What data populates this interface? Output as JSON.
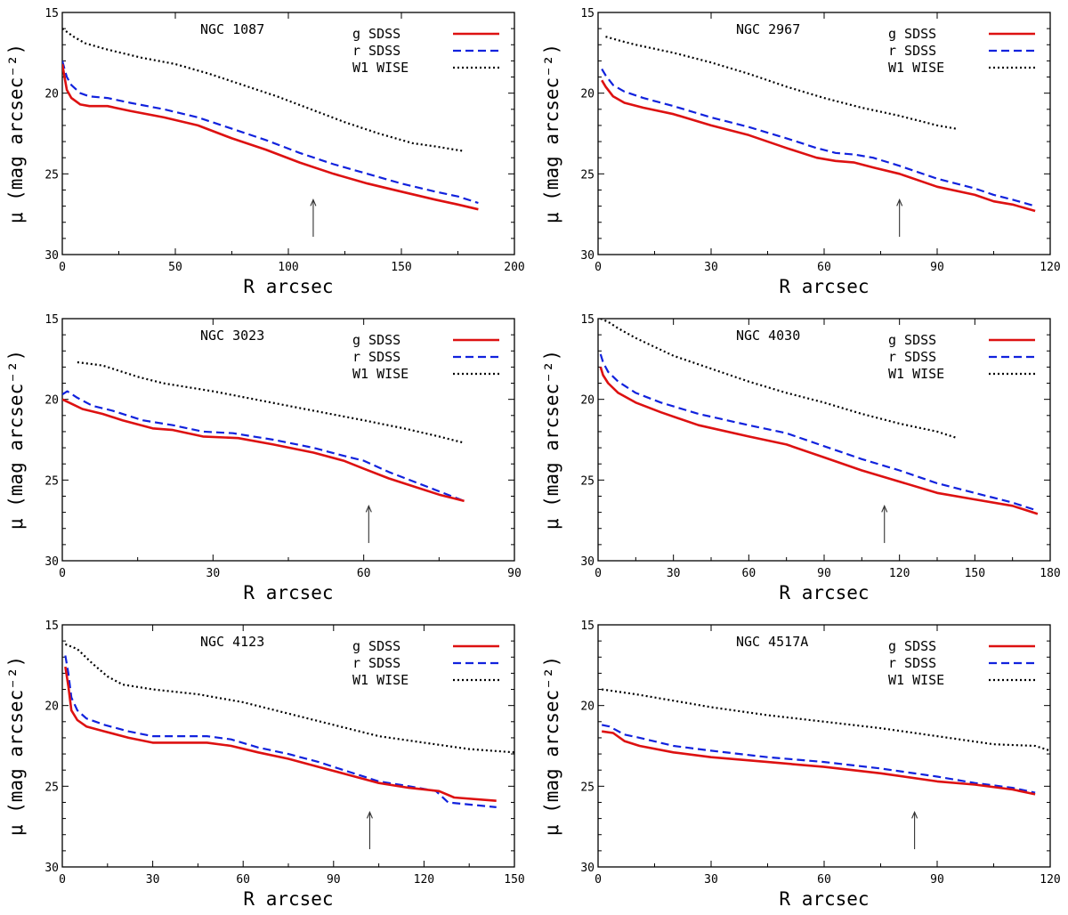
{
  "figure": {
    "xlabel": "R arcsec",
    "ylabel": "μ (mag arcsec⁻²)"
  },
  "colors": {
    "g": "#dd1111",
    "r": "#1122dd",
    "w1": "#000000",
    "arrow": "#333333"
  },
  "chart_data": [
    {
      "type": "line",
      "title": "NGC 1087",
      "xlabel": "R arcsec",
      "ylabel": "μ (mag arcsec⁻²)",
      "xlim": [
        0,
        200
      ],
      "ylim": [
        30,
        15
      ],
      "xticks": [
        "0",
        "50",
        "100",
        "150",
        "200"
      ],
      "yticks": [
        "15",
        "20",
        "25",
        "30"
      ],
      "legend": [
        "g   SDSS",
        "r   SDSS",
        "W1  WISE"
      ],
      "arrow_x": 111,
      "series": [
        {
          "name": "g SDSS",
          "key": "g",
          "x": [
            0,
            1,
            2,
            4,
            8,
            12,
            20,
            30,
            45,
            60,
            75,
            90,
            105,
            120,
            135,
            150,
            165,
            175,
            184
          ],
          "y": [
            18.2,
            19.0,
            19.8,
            20.3,
            20.7,
            20.8,
            20.8,
            21.1,
            21.5,
            22.0,
            22.8,
            23.5,
            24.3,
            25.0,
            25.6,
            26.1,
            26.6,
            26.9,
            27.2
          ]
        },
        {
          "name": "r SDSS",
          "key": "r",
          "x": [
            0,
            1,
            2,
            4,
            8,
            12,
            20,
            30,
            45,
            60,
            75,
            90,
            105,
            120,
            135,
            150,
            165,
            175,
            184
          ],
          "y": [
            18.0,
            18.5,
            19.0,
            19.5,
            20.0,
            20.2,
            20.3,
            20.6,
            21.0,
            21.5,
            22.2,
            22.9,
            23.7,
            24.4,
            25.0,
            25.6,
            26.1,
            26.4,
            26.8
          ]
        },
        {
          "name": "W1 WISE",
          "key": "w1",
          "x": [
            0,
            5,
            10,
            20,
            35,
            50,
            65,
            80,
            95,
            110,
            125,
            140,
            155,
            165,
            178
          ],
          "y": [
            16.0,
            16.5,
            16.9,
            17.3,
            17.8,
            18.2,
            18.8,
            19.5,
            20.2,
            21.0,
            21.8,
            22.5,
            23.1,
            23.3,
            23.6
          ]
        }
      ]
    },
    {
      "type": "line",
      "title": "NGC 2967",
      "xlabel": "R arcsec",
      "ylabel": "μ (mag arcsec⁻²)",
      "xlim": [
        0,
        120
      ],
      "ylim": [
        30,
        15
      ],
      "xticks": [
        "0",
        "30",
        "60",
        "90",
        "120"
      ],
      "yticks": [
        "15",
        "20",
        "25",
        "30"
      ],
      "legend": [
        "g   SDSS",
        "r   SDSS",
        "W1  WISE"
      ],
      "arrow_x": 80,
      "series": [
        {
          "name": "g SDSS",
          "key": "g",
          "x": [
            1,
            2,
            4,
            7,
            12,
            20,
            30,
            40,
            50,
            58,
            63,
            68,
            73,
            80,
            90,
            100,
            105,
            110,
            116
          ],
          "y": [
            19.2,
            19.6,
            20.2,
            20.6,
            20.9,
            21.3,
            22.0,
            22.6,
            23.4,
            24.0,
            24.2,
            24.3,
            24.6,
            25.0,
            25.8,
            26.3,
            26.7,
            26.9,
            27.3
          ]
        },
        {
          "name": "r SDSS",
          "key": "r",
          "x": [
            1,
            2,
            4,
            7,
            12,
            20,
            30,
            40,
            50,
            58,
            63,
            68,
            73,
            80,
            90,
            100,
            105,
            110,
            116
          ],
          "y": [
            18.5,
            18.9,
            19.5,
            19.9,
            20.3,
            20.8,
            21.5,
            22.1,
            22.8,
            23.4,
            23.7,
            23.8,
            24.0,
            24.5,
            25.3,
            25.9,
            26.3,
            26.6,
            27.0
          ]
        },
        {
          "name": "W1 WISE",
          "key": "w1",
          "x": [
            2,
            5,
            10,
            20,
            30,
            40,
            50,
            60,
            70,
            80,
            90,
            95
          ],
          "y": [
            16.5,
            16.7,
            17.0,
            17.5,
            18.1,
            18.8,
            19.6,
            20.3,
            20.9,
            21.4,
            22.0,
            22.2
          ]
        }
      ]
    },
    {
      "type": "line",
      "title": "NGC 3023",
      "xlabel": "R arcsec",
      "ylabel": "μ (mag arcsec⁻²)",
      "xlim": [
        0,
        90
      ],
      "ylim": [
        30,
        15
      ],
      "xticks": [
        "0",
        "30",
        "60",
        "90"
      ],
      "yticks": [
        "15",
        "20",
        "25",
        "30"
      ],
      "legend": [
        "g   SDSS",
        "r   SDSS",
        "W1  WISE"
      ],
      "arrow_x": 61,
      "series": [
        {
          "name": "g SDSS",
          "key": "g",
          "x": [
            0,
            2,
            4,
            8,
            12,
            18,
            22,
            28,
            35,
            42,
            50,
            56,
            60,
            65,
            70,
            75,
            80
          ],
          "y": [
            20.0,
            20.3,
            20.6,
            20.9,
            21.3,
            21.8,
            21.9,
            22.3,
            22.4,
            22.8,
            23.3,
            23.8,
            24.3,
            24.9,
            25.4,
            25.9,
            26.3
          ]
        },
        {
          "name": "r SDSS",
          "key": "r",
          "x": [
            0,
            1,
            3,
            6,
            10,
            16,
            22,
            28,
            34,
            36,
            42,
            50,
            56,
            60,
            65,
            70,
            75,
            80
          ],
          "y": [
            19.7,
            19.5,
            19.9,
            20.4,
            20.7,
            21.3,
            21.6,
            22.0,
            22.1,
            22.2,
            22.5,
            23.0,
            23.5,
            23.8,
            24.5,
            25.1,
            25.7,
            26.3
          ]
        },
        {
          "name": "W1 WISE",
          "key": "w1",
          "x": [
            3,
            8,
            15,
            20,
            30,
            40,
            50,
            60,
            68,
            75,
            80
          ],
          "y": [
            17.7,
            17.9,
            18.6,
            19.0,
            19.5,
            20.1,
            20.7,
            21.3,
            21.8,
            22.3,
            22.7
          ]
        }
      ]
    },
    {
      "type": "line",
      "title": "NGC 4030",
      "xlabel": "R arcsec",
      "ylabel": "μ (mag arcsec⁻²)",
      "xlim": [
        0,
        180
      ],
      "ylim": [
        30,
        15
      ],
      "xticks": [
        "0",
        "30",
        "60",
        "90",
        "120",
        "150",
        "180"
      ],
      "yticks": [
        "15",
        "20",
        "25",
        "30"
      ],
      "legend": [
        "g   SDSS",
        "r   SDSS",
        "W1  WISE"
      ],
      "arrow_x": 114,
      "series": [
        {
          "name": "g SDSS",
          "key": "g",
          "x": [
            1,
            2,
            4,
            8,
            15,
            25,
            40,
            60,
            75,
            90,
            105,
            120,
            135,
            150,
            165,
            175
          ],
          "y": [
            18.0,
            18.5,
            19.0,
            19.6,
            20.2,
            20.8,
            21.6,
            22.3,
            22.8,
            23.6,
            24.4,
            25.1,
            25.8,
            26.2,
            26.6,
            27.1
          ]
        },
        {
          "name": "r SDSS",
          "key": "r",
          "x": [
            1,
            2,
            4,
            8,
            15,
            25,
            40,
            60,
            75,
            90,
            105,
            120,
            135,
            150,
            165,
            175
          ],
          "y": [
            17.2,
            17.7,
            18.3,
            18.9,
            19.6,
            20.2,
            20.9,
            21.6,
            22.1,
            22.9,
            23.7,
            24.4,
            25.2,
            25.8,
            26.4,
            26.9
          ]
        },
        {
          "name": "W1 WISE",
          "key": "w1",
          "x": [
            1,
            4,
            8,
            15,
            30,
            45,
            60,
            75,
            90,
            105,
            120,
            135,
            143
          ],
          "y": [
            15.0,
            15.2,
            15.6,
            16.2,
            17.3,
            18.1,
            18.9,
            19.6,
            20.2,
            20.9,
            21.5,
            22.0,
            22.4
          ]
        }
      ]
    },
    {
      "type": "line",
      "title": "NGC 4123",
      "xlabel": "R arcsec",
      "ylabel": "μ (mag arcsec⁻²)",
      "xlim": [
        0,
        150
      ],
      "ylim": [
        30,
        15
      ],
      "xticks": [
        "0",
        "30",
        "60",
        "90",
        "120",
        "150"
      ],
      "yticks": [
        "15",
        "20",
        "25",
        "30"
      ],
      "legend": [
        "g   SDSS",
        "r   SDSS",
        "W1  WISE"
      ],
      "arrow_x": 102,
      "series": [
        {
          "name": "g SDSS",
          "key": "g",
          "x": [
            1,
            2,
            3,
            5,
            8,
            14,
            22,
            30,
            40,
            48,
            56,
            65,
            75,
            85,
            95,
            105,
            115,
            125,
            130,
            144
          ],
          "y": [
            17.6,
            18.8,
            20.3,
            20.9,
            21.3,
            21.6,
            22.0,
            22.3,
            22.3,
            22.3,
            22.5,
            22.9,
            23.3,
            23.8,
            24.3,
            24.8,
            25.1,
            25.3,
            25.7,
            25.9
          ]
        },
        {
          "name": "r SDSS",
          "key": "r",
          "x": [
            1,
            2,
            3,
            5,
            8,
            14,
            22,
            30,
            40,
            48,
            56,
            65,
            75,
            85,
            95,
            105,
            115,
            124,
            128,
            144
          ],
          "y": [
            16.9,
            18.0,
            19.5,
            20.3,
            20.8,
            21.2,
            21.6,
            21.9,
            21.9,
            21.9,
            22.1,
            22.6,
            23.0,
            23.5,
            24.1,
            24.7,
            25.0,
            25.3,
            26.0,
            26.3
          ]
        },
        {
          "name": "W1 WISE",
          "key": "w1",
          "x": [
            1,
            5,
            10,
            15,
            20,
            30,
            45,
            60,
            75,
            90,
            105,
            120,
            135,
            150
          ],
          "y": [
            16.2,
            16.5,
            17.4,
            18.2,
            18.7,
            19.0,
            19.3,
            19.8,
            20.5,
            21.2,
            21.9,
            22.3,
            22.7,
            22.9
          ]
        }
      ]
    },
    {
      "type": "line",
      "title": "NGC 4517A",
      "xlabel": "R arcsec",
      "ylabel": "μ (mag arcsec⁻²)",
      "xlim": [
        0,
        120
      ],
      "ylim": [
        30,
        15
      ],
      "xticks": [
        "0",
        "30",
        "60",
        "90",
        "120"
      ],
      "yticks": [
        "15",
        "20",
        "25",
        "30"
      ],
      "legend": [
        "g   SDSS",
        "r   SDSS",
        "W1  WISE"
      ],
      "arrow_x": 84,
      "series": [
        {
          "name": "g SDSS",
          "key": "g",
          "x": [
            1,
            4,
            7,
            11,
            20,
            30,
            45,
            60,
            75,
            90,
            100,
            110,
            116
          ],
          "y": [
            21.6,
            21.7,
            22.2,
            22.5,
            22.9,
            23.2,
            23.5,
            23.8,
            24.2,
            24.7,
            24.9,
            25.2,
            25.5
          ]
        },
        {
          "name": "r SDSS",
          "key": "r",
          "x": [
            1,
            3,
            7,
            11,
            20,
            30,
            45,
            60,
            75,
            90,
            100,
            110,
            116
          ],
          "y": [
            21.2,
            21.3,
            21.8,
            22.0,
            22.5,
            22.8,
            23.2,
            23.5,
            23.9,
            24.4,
            24.8,
            25.1,
            25.4
          ]
        },
        {
          "name": "W1 WISE",
          "key": "w1",
          "x": [
            1,
            10,
            20,
            30,
            45,
            60,
            75,
            90,
            105,
            116,
            120
          ],
          "y": [
            19.0,
            19.3,
            19.7,
            20.1,
            20.6,
            21.0,
            21.4,
            21.9,
            22.4,
            22.5,
            22.8
          ]
        }
      ]
    }
  ]
}
